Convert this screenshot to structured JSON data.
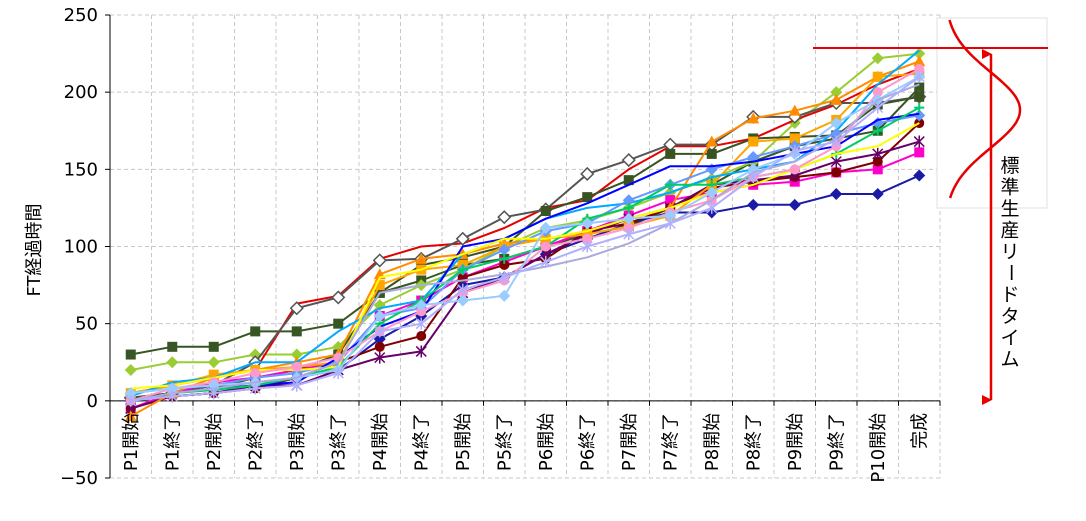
{
  "chart_data": {
    "type": "line",
    "ylabel": "FT経過時間",
    "xlabel": "",
    "ylim": [
      -50,
      250
    ],
    "yticks": [
      "250",
      "200",
      "150",
      "100",
      "50",
      "0",
      "−50"
    ],
    "grid": true,
    "legend": "none",
    "categories": [
      "P1開始",
      "P1終了",
      "P2開始",
      "P2終了",
      "P3開始",
      "P3終了",
      "P4開始",
      "P4終了",
      "P5開始",
      "P5終了",
      "P6開始",
      "P6終了",
      "P7開始",
      "P7終了",
      "P8開始",
      "P8終了",
      "P9開始",
      "P9終了",
      "P10開始",
      "完成"
    ],
    "series": [
      {
        "color": "#375623",
        "marker": "square",
        "values": [
          30,
          35,
          35,
          45,
          45,
          50,
          70,
          78,
          88,
          92,
          100,
          108,
          113,
          125,
          140,
          155,
          165,
          170,
          175,
          203
        ]
      },
      {
        "color": "#9acd32",
        "marker": "diamond",
        "values": [
          20,
          25,
          25,
          30,
          30,
          35,
          62,
          75,
          85,
          100,
          112,
          117,
          125,
          135,
          144,
          155,
          180,
          200,
          222,
          225
        ]
      },
      {
        "color": "#e60000",
        "marker": "line",
        "values": [
          5,
          10,
          15,
          20,
          63,
          68,
          92,
          100,
          102,
          112,
          125,
          130,
          150,
          165,
          165,
          170,
          182,
          192,
          205,
          215
        ]
      },
      {
        "color": "#555555",
        "marker": "diamond-open",
        "values": [
          2,
          5,
          10,
          25,
          60,
          67,
          91,
          92,
          105,
          119,
          124,
          147,
          156,
          166,
          166,
          184,
          184,
          193,
          193,
          197
        ]
      },
      {
        "color": "#3a5323",
        "marker": "square",
        "values": [
          2,
          5,
          8,
          15,
          20,
          30,
          70,
          88,
          93,
          100,
          123,
          132,
          143,
          160,
          160,
          170,
          171,
          172,
          192,
          197
        ]
      },
      {
        "color": "#1a1aa6",
        "marker": "diamond",
        "values": [
          0,
          3,
          5,
          10,
          15,
          20,
          40,
          55,
          75,
          80,
          95,
          105,
          115,
          122,
          122,
          127,
          127,
          134,
          134,
          146
        ]
      },
      {
        "color": "#ff00cc",
        "marker": "square",
        "values": [
          -5,
          5,
          12,
          15,
          20,
          25,
          55,
          65,
          80,
          90,
          100,
          110,
          120,
          130,
          135,
          140,
          142,
          148,
          150,
          161
        ]
      },
      {
        "color": "#800000",
        "marker": "circle",
        "values": [
          -5,
          3,
          5,
          8,
          15,
          25,
          35,
          42,
          80,
          88,
          92,
          110,
          115,
          125,
          138,
          142,
          145,
          148,
          155,
          180
        ]
      },
      {
        "color": "#660066",
        "marker": "star",
        "values": [
          -5,
          3,
          5,
          10,
          10,
          20,
          28,
          32,
          70,
          80,
          95,
          108,
          118,
          125,
          140,
          143,
          146,
          155,
          160,
          168
        ]
      },
      {
        "color": "#ff8c00",
        "marker": "triangle",
        "values": [
          -10,
          5,
          15,
          20,
          25,
          30,
          82,
          92,
          95,
          102,
          105,
          110,
          118,
          125,
          168,
          183,
          188,
          195,
          210,
          220
        ]
      },
      {
        "color": "#ffa500",
        "marker": "square",
        "values": [
          5,
          10,
          17,
          20,
          22,
          25,
          75,
          85,
          88,
          100,
          105,
          108,
          113,
          120,
          140,
          168,
          170,
          182,
          210,
          212
        ]
      },
      {
        "color": "#00aaff",
        "marker": "line",
        "values": [
          3,
          12,
          15,
          25,
          25,
          45,
          60,
          65,
          95,
          105,
          118,
          125,
          128,
          135,
          145,
          150,
          155,
          175,
          205,
          227
        ]
      },
      {
        "color": "#6699ff",
        "marker": "diamond",
        "values": [
          5,
          8,
          10,
          15,
          18,
          25,
          55,
          60,
          85,
          98,
          110,
          115,
          130,
          140,
          150,
          158,
          165,
          173,
          180,
          185
        ]
      },
      {
        "color": "#0000ff",
        "marker": "line",
        "values": [
          0,
          5,
          8,
          10,
          12,
          28,
          48,
          58,
          100,
          105,
          118,
          128,
          140,
          152,
          152,
          155,
          160,
          165,
          182,
          186
        ]
      },
      {
        "color": "#00cc66",
        "marker": "plus",
        "values": [
          0,
          5,
          7,
          10,
          15,
          22,
          50,
          65,
          85,
          92,
          100,
          118,
          125,
          140,
          140,
          145,
          150,
          160,
          175,
          190
        ]
      },
      {
        "color": "#ffff00",
        "marker": "line",
        "values": [
          8,
          10,
          15,
          20,
          20,
          22,
          80,
          85,
          95,
          105,
          105,
          110,
          118,
          125,
          135,
          140,
          150,
          160,
          165,
          180
        ]
      },
      {
        "color": "#ff99cc",
        "marker": "circle",
        "values": [
          0,
          8,
          12,
          18,
          22,
          28,
          45,
          58,
          70,
          78,
          100,
          105,
          112,
          122,
          130,
          145,
          150,
          165,
          200,
          215
        ]
      },
      {
        "color": "#99ccff",
        "marker": "diamond",
        "values": [
          5,
          8,
          10,
          12,
          15,
          20,
          55,
          62,
          65,
          68,
          112,
          115,
          118,
          120,
          135,
          150,
          160,
          180,
          195,
          210
        ]
      },
      {
        "color": "#aaaadd",
        "marker": "line",
        "values": [
          0,
          5,
          8,
          12,
          15,
          25,
          70,
          75,
          78,
          82,
          87,
          93,
          102,
          115,
          130,
          148,
          155,
          170,
          195,
          205
        ]
      },
      {
        "color": "#b0b0ff",
        "marker": "star",
        "values": [
          0,
          3,
          5,
          8,
          10,
          18,
          45,
          50,
          72,
          80,
          90,
          100,
          108,
          115,
          125,
          145,
          162,
          168,
          190,
          210
        ]
      }
    ],
    "annotations": {
      "lead_time_label": "標準生産リードタイム"
    }
  }
}
